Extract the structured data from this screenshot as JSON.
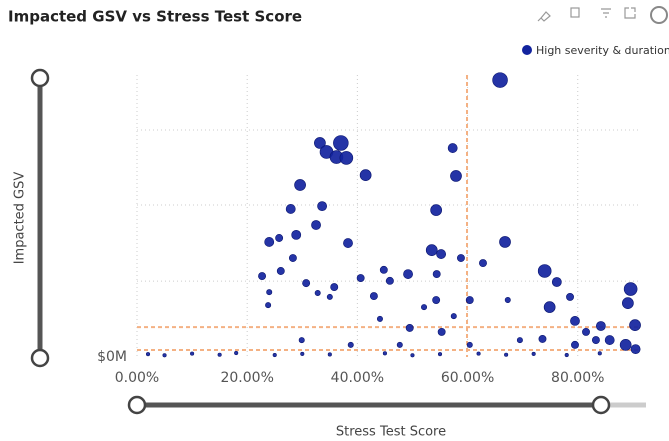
{
  "chart_data": {
    "type": "scatter",
    "title": "Impacted GSV vs Stress Test Score",
    "x_label": "Stress Test Score",
    "y_label": "Impacted GSV",
    "xlim": [
      0,
      91.3
    ],
    "ylim": [
      0,
      100
    ],
    "xticks": [
      {
        "value": 0,
        "label": "0.00%"
      },
      {
        "value": 20,
        "label": "20.00%"
      },
      {
        "value": 40,
        "label": "40.00%"
      },
      {
        "value": 60,
        "label": "60.00%"
      },
      {
        "value": 80,
        "label": "80.00%"
      }
    ],
    "yticks": [
      {
        "value": 0,
        "label": "$0M"
      }
    ],
    "y_gridlines": [
      26.9,
      53.9,
      80.5
    ],
    "x_reference": 59.9,
    "y_references": [
      10.6,
      2.5
    ],
    "grid": true,
    "legend": "top-right",
    "series": [
      {
        "name": "High severity & duration",
        "color": "#12239e",
        "x": [
          65.9,
          37.0,
          33.2,
          34.4,
          36.2,
          38.0,
          29.6,
          41.5,
          27.9,
          33.6,
          57.3,
          57.9,
          54.3,
          32.5,
          28.9,
          24.0,
          25.8,
          38.3,
          66.8,
          53.5,
          55.2,
          28.3,
          58.8,
          62.8,
          74.0,
          22.7,
          26.1,
          40.6,
          44.8,
          49.2,
          54.4,
          89.6,
          76.2,
          30.7,
          35.8,
          45.9,
          24.0,
          32.8,
          43.0,
          54.3,
          60.4,
          67.3,
          78.6,
          74.9,
          89.1,
          23.8,
          35.0,
          52.1,
          44.1,
          57.5,
          79.5,
          84.2,
          90.4,
          49.5,
          55.3,
          73.6,
          81.5,
          85.8,
          88.7,
          90.5,
          83.3,
          79.5,
          29.9,
          38.8,
          47.7,
          60.4,
          69.5,
          2,
          5,
          10,
          15,
          18,
          25,
          30,
          35,
          45,
          50,
          55,
          62,
          67,
          72,
          78,
          84
        ],
        "values": [
          98.2,
          75.9,
          75.9,
          72.7,
          70.9,
          70.6,
          61.0,
          64.5,
          52.5,
          53.5,
          74.1,
          64.2,
          52.1,
          46.8,
          43.3,
          40.8,
          42.2,
          40.4,
          40.8,
          37.9,
          36.5,
          35.1,
          35.1,
          33.3,
          30.5,
          28.7,
          30.5,
          28.0,
          30.9,
          29.4,
          29.4,
          24.1,
          26.6,
          26.2,
          24.8,
          27.0,
          23.0,
          22.7,
          21.6,
          20.2,
          20.2,
          20.2,
          21.3,
          17.7,
          19.1,
          18.4,
          21.3,
          17.7,
          13.5,
          14.5,
          12.8,
          11.0,
          11.3,
          10.3,
          8.9,
          6.4,
          8.9,
          6.0,
          4.3,
          2.8,
          6.0,
          4.3,
          6.0,
          4.3,
          4.3,
          4.3,
          6.0,
          1.0,
          0.6,
          1.2,
          0.8,
          1.4,
          0.7,
          1.1,
          0.9,
          1.3,
          0.6,
          1.0,
          1.2,
          0.8,
          1.1,
          0.7,
          1.3
        ],
        "sizes": [
          7,
          7,
          5,
          6,
          6,
          6,
          5,
          5,
          4,
          4,
          4,
          5,
          5,
          4,
          4,
          4,
          3,
          4,
          5,
          5,
          4,
          3,
          3,
          3,
          6,
          3,
          3,
          3,
          3,
          4,
          3,
          6,
          4,
          3,
          3,
          3,
          2,
          2,
          3,
          3,
          3,
          2,
          3,
          5,
          5,
          2,
          2,
          2,
          2,
          2,
          4,
          4,
          5,
          3,
          3,
          3,
          3,
          4,
          5,
          4,
          3,
          3,
          2,
          2,
          2,
          2,
          2,
          1,
          1,
          1,
          1,
          1,
          1,
          1,
          1,
          1,
          1,
          1,
          1,
          1,
          1,
          1,
          1
        ]
      }
    ]
  }
}
